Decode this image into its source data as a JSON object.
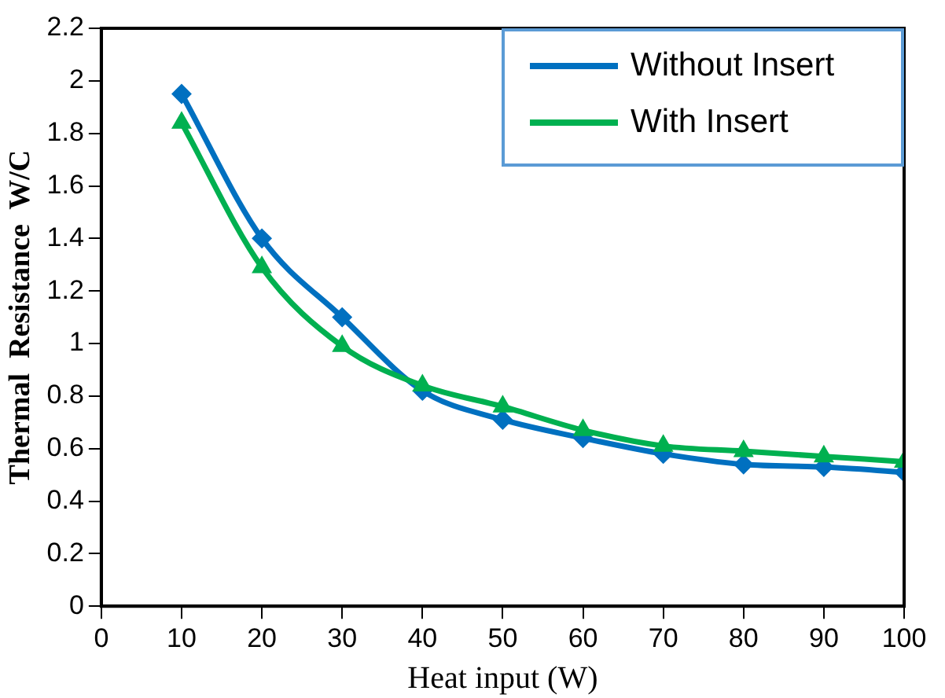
{
  "chart_data": {
    "type": "line",
    "xlabel": "Heat input (W)",
    "ylabel": "Thermal  Resistance  W/C",
    "x": [
      10,
      20,
      30,
      40,
      50,
      60,
      70,
      80,
      90,
      100
    ],
    "series": [
      {
        "name": "Without Insert",
        "color": "#0070c0",
        "marker": "diamond",
        "values": [
          1.95,
          1.4,
          1.1,
          0.82,
          0.71,
          0.64,
          0.58,
          0.54,
          0.53,
          0.51
        ]
      },
      {
        "name": "With Insert",
        "color": "#00b050",
        "marker": "triangle",
        "values": [
          1.84,
          1.29,
          0.99,
          0.84,
          0.76,
          0.67,
          0.61,
          0.59,
          0.57,
          0.55
        ]
      }
    ],
    "xlim": [
      0,
      100
    ],
    "xticks": [
      0,
      10,
      20,
      30,
      40,
      50,
      60,
      70,
      80,
      90,
      100
    ],
    "ylim": [
      0,
      2.2
    ],
    "yticks": [
      0,
      0.2,
      0.4,
      0.6,
      0.8,
      1,
      1.2,
      1.4,
      1.6,
      1.8,
      2,
      2.2
    ],
    "grid": false,
    "legend": "top right"
  }
}
